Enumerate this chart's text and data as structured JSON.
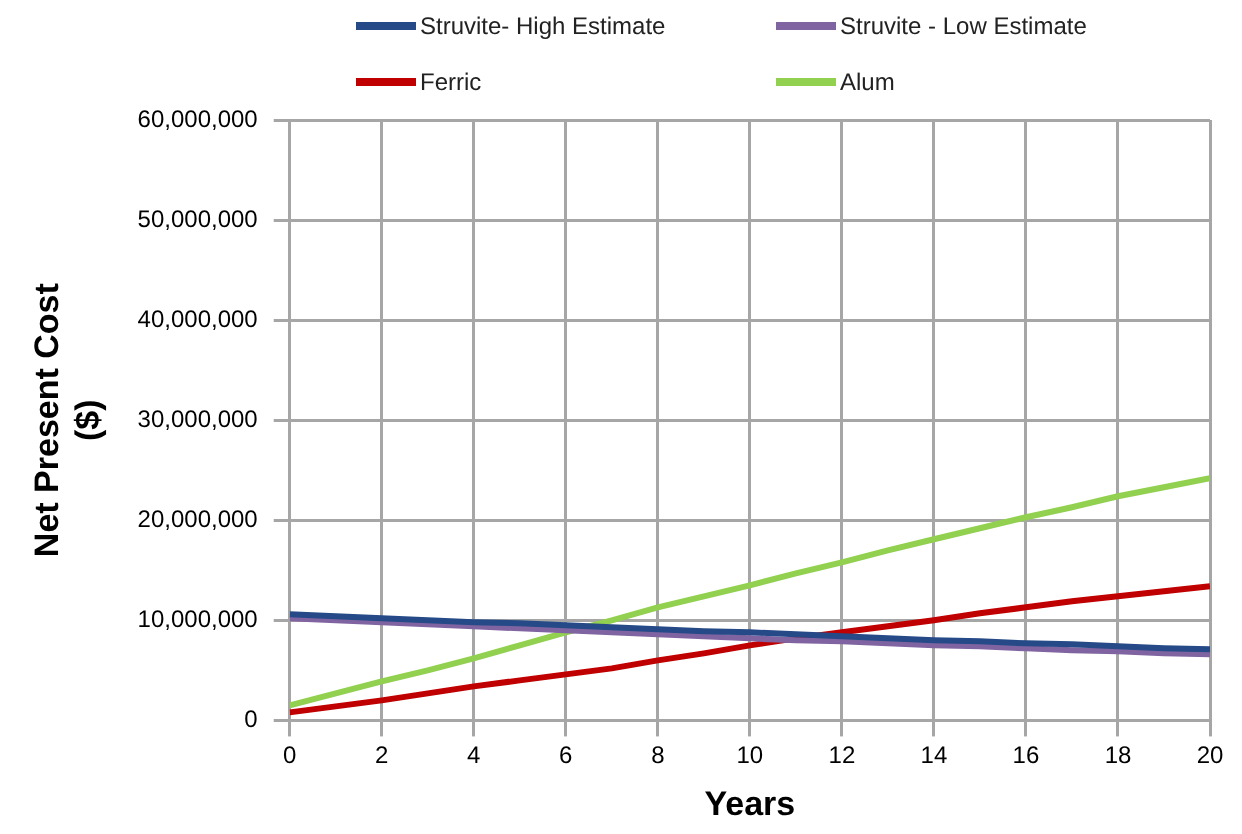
{
  "chart_data": {
    "type": "line",
    "xlabel": "Years",
    "ylabel": "Net Present Cost ($)",
    "x": [
      0,
      1,
      2,
      3,
      4,
      5,
      6,
      7,
      8,
      9,
      10,
      11,
      12,
      13,
      14,
      15,
      16,
      17,
      18,
      19,
      20
    ],
    "series": [
      {
        "name": "Struvite- High Estimate",
        "color": "#254a87",
        "values": [
          10600000,
          10400000,
          10200000,
          10000000,
          9800000,
          9700000,
          9500000,
          9300000,
          9100000,
          8900000,
          8800000,
          8600000,
          8400000,
          8200000,
          8000000,
          7900000,
          7700000,
          7600000,
          7400000,
          7200000,
          7100000
        ]
      },
      {
        "name": "Struvite - Low Estimate",
        "color": "#8064a2",
        "values": [
          10200000,
          10000000,
          9800000,
          9600000,
          9400000,
          9200000,
          9000000,
          8800000,
          8600000,
          8400000,
          8200000,
          8000000,
          7900000,
          7700000,
          7500000,
          7400000,
          7200000,
          7000000,
          6900000,
          6700000,
          6600000
        ]
      },
      {
        "name": "Ferric",
        "color": "#c00000",
        "values": [
          800000,
          1400000,
          2000000,
          2700000,
          3400000,
          4000000,
          4600000,
          5200000,
          6000000,
          6700000,
          7500000,
          8200000,
          8800000,
          9400000,
          10000000,
          10700000,
          11300000,
          11900000,
          12400000,
          12900000,
          13400000
        ]
      },
      {
        "name": "Alum",
        "color": "#92d050",
        "values": [
          1500000,
          2700000,
          3900000,
          5000000,
          6200000,
          7500000,
          8800000,
          10000000,
          11300000,
          12400000,
          13500000,
          14700000,
          15800000,
          17000000,
          18100000,
          19200000,
          20300000,
          21300000,
          22400000,
          23300000,
          24200000
        ]
      }
    ],
    "xlim": [
      0,
      20
    ],
    "xticks": [
      0,
      2,
      4,
      6,
      8,
      10,
      12,
      14,
      16,
      18,
      20
    ],
    "ylim": [
      0,
      60000000
    ],
    "yticks": [
      0,
      {
        "value": 10000000,
        "label": "10,000,000"
      },
      {
        "value": 20000000,
        "label": "20,000,000"
      },
      {
        "value": 30000000,
        "label": "30,000,000"
      },
      {
        "value": 40000000,
        "label": "40,000,000"
      },
      {
        "value": 50000000,
        "label": "50,000,000"
      },
      {
        "value": 60000000,
        "label": "60,000,000"
      }
    ],
    "grid": true,
    "legend": "top",
    "marker": "none",
    "line_style": "solid"
  }
}
